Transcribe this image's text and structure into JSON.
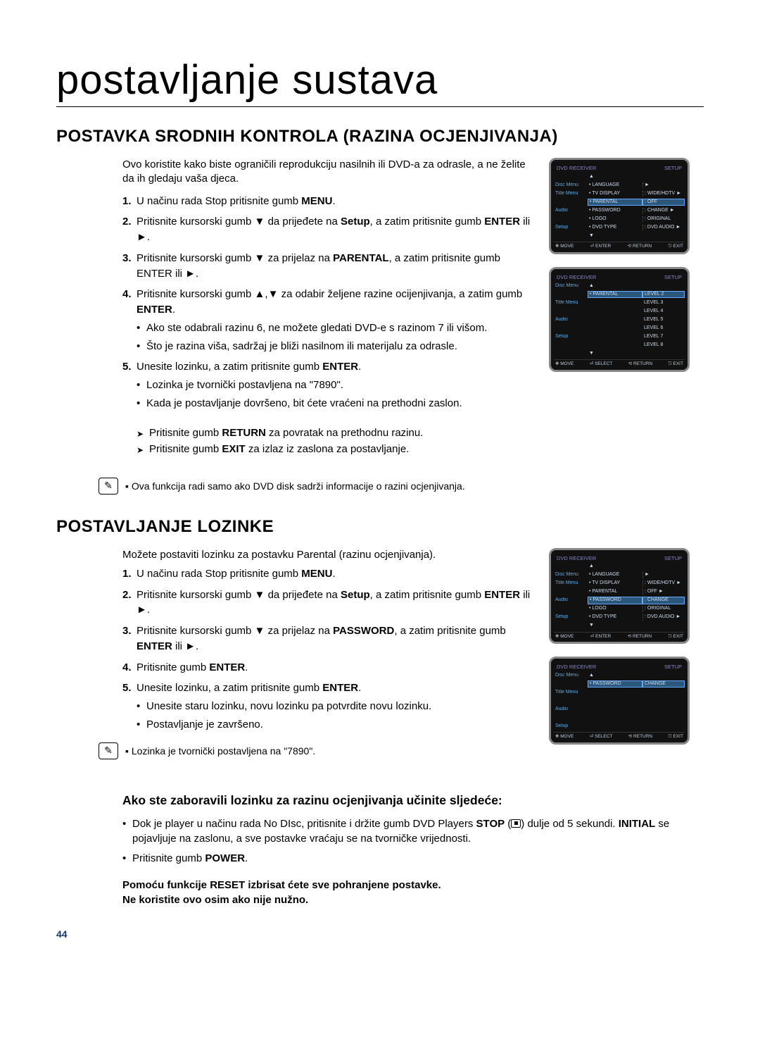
{
  "page_title": "postavljanje sustava",
  "section1": {
    "heading": "POSTAVKA SRODNIH KONTROLA (RAZINA OCJENJIVANJA)",
    "intro": "Ovo koristite kako biste ograničili reprodukciju nasilnih ili DVD-a za odrasle, a ne želite da ih gledaju vaša djeca.",
    "steps": [
      {
        "n": "1.",
        "html": "U načinu rada Stop pritisnite gumb <b>MENU</b>."
      },
      {
        "n": "2.",
        "html": "Pritisnite kursorski gumb ▼ da prijeđete na <b>Setup</b>, a zatim pritisnite gumb <b>ENTER</b> ili ►."
      },
      {
        "n": "3.",
        "html": "Pritisnite kursorski gumb ▼  za prijelaz na <b>PARENTAL</b>, a zatim pritisnite gumb ENTER ili ►."
      },
      {
        "n": "4.",
        "html": "Pritisnite kursorski gumb ▲,▼ za odabir željene razine ocijenjivanja, a zatim gumb <b>ENTER</b>.",
        "sub": [
          "Ako ste odabrali razinu 6, ne možete gledati DVD-e s razinom 7 ili višom.",
          "Što je razina viša, sadržaj je bliži nasilnom ili materijalu za odrasle."
        ]
      },
      {
        "n": "5.",
        "html": "Unesite lozinku, a zatim pritisnite gumb <b>ENTER</b>.",
        "sub": [
          "Lozinka je tvornički postavljena na \"7890\".",
          "Kada je postavljanje dovršeno, bit ćete vraćeni na prethodni zaslon."
        ]
      }
    ],
    "arrows": [
      "Pritisnite gumb <b>RETURN</b> za povratak na prethodnu razinu.",
      "Pritisnite gumb <b>EXIT</b> za izlaz iz zaslona za postavljanje."
    ],
    "note": "Ova funkcija radi samo ako DVD disk sadrži informacije o razini ocjenjivanja."
  },
  "section2": {
    "heading": "POSTAVLJANJE LOZINKE",
    "intro": "Možete postaviti lozinku za postavku Parental (razinu ocjenjivanja).",
    "steps": [
      {
        "n": "1.",
        "html": "U načinu rada Stop pritisnite gumb <b>MENU</b>."
      },
      {
        "n": "2.",
        "html": "Pritisnite kursorski gumb ▼ da prijeđete na <b>Setup</b>, a zatim pritisnite gumb <b>ENTER</b> ili ►."
      },
      {
        "n": "3.",
        "html": "Pritisnite kursorski gumb ▼ za prijelaz na <b>PASSWORD</b>, a zatim pritisnite gumb <b>ENTER</b> ili ►."
      },
      {
        "n": "4.",
        "html": "Pritisnite gumb <b>ENTER</b>."
      },
      {
        "n": "5.",
        "html": "Unesite lozinku, a zatim pritisnite gumb <b>ENTER</b>.",
        "sub": [
          "Unesite staru lozinku, novu lozinku pa potvrdite novu lozinku.",
          "Postavljanje je završeno."
        ]
      }
    ],
    "note": "Lozinka je tvornički postavljena na \"7890\"."
  },
  "section3": {
    "heading": "Ako ste zaboravili lozinku za razinu ocjenjivanja učinite sljedeće:",
    "bullets_pre": "Dok je player u načinu rada No DIsc, pritisnite i držite gumb DVD Players <b>STOP</b> (",
    "bullets_post": ") dulje od 5 sekundi. <b>INITIAL</b> se pojavljuje na zaslonu, a sve postavke vraćaju se na tvorničke vrijednosti.",
    "bullet2": "Pritisnite gumb <b>POWER</b>.",
    "warn1": "Pomoću funkcije RESET izbrisat ćete sve pohranjene postavke.",
    "warn2": "Ne koristite ovo osim ako nije nužno."
  },
  "page_number": "44",
  "dvd_shots": {
    "top_left": "DVD RECEIVER",
    "top_right": "SETUP",
    "side": [
      "Disc Menu",
      "Title Menu",
      "",
      "Audio",
      "",
      "Setup"
    ],
    "menu1_rows": [
      [
        "• LANGUAGE",
        "►"
      ],
      [
        "• TV DISPLAY",
        ": WIDE/HDTV ►"
      ],
      [
        "• PARENTAL",
        ": OFF"
      ],
      [
        "• PASSWORD",
        ": CHANGE ►"
      ],
      [
        "• LOGO",
        ": ORIGINAL"
      ],
      [
        "• DVD TYPE",
        ": DVD AUDIO ►"
      ]
    ],
    "footer_enter": [
      "✥ MOVE",
      "⏎ ENTER",
      "⟲ RETURN",
      "⎋ EXIT"
    ],
    "menu2_parental": "• PARENTAL",
    "menu2_levels": [
      "LEVEL 2",
      "LEVEL 3",
      "LEVEL 4",
      "LEVEL 5",
      "LEVEL 6",
      "LEVEL 7",
      "LEVEL 8"
    ],
    "footer_select": [
      "✥ MOVE",
      "⏎ SELECT",
      "⟲ RETURN",
      "⎋ EXIT"
    ],
    "menu3_rows": [
      [
        "• LANGUAGE",
        "►"
      ],
      [
        "• TV DISPLAY",
        ": WIDE/HDTV ►"
      ],
      [
        "• PARENTAL",
        ": OFF ►"
      ],
      [
        "• PASSWORD",
        ": CHANGE"
      ],
      [
        "• LOGO",
        ": ORIGINAL"
      ],
      [
        "• DVD TYPE",
        ": DVD AUDIO ►"
      ]
    ],
    "menu4_label": "• PASSWORD",
    "menu4_value": "CHANGE"
  }
}
